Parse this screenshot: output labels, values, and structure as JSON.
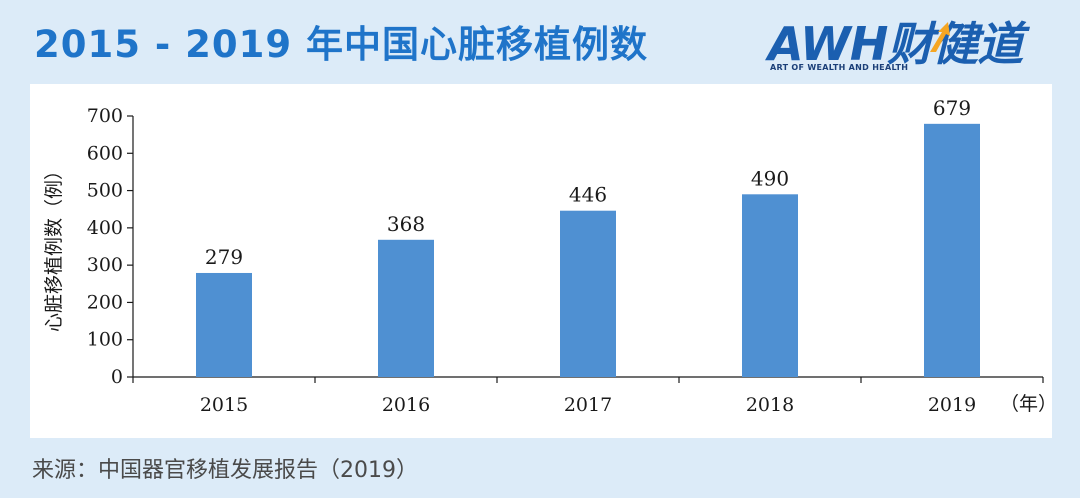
{
  "header": {
    "title": "2015 - 2019 年中国心脏移植例数"
  },
  "logo": {
    "main": "AWH财健道",
    "tagline": "ART OF WEALTH AND HEALTH",
    "arrow_color": "#f5a623"
  },
  "chart_data": {
    "type": "bar",
    "categories": [
      "2015",
      "2016",
      "2017",
      "2018",
      "2019"
    ],
    "values": [
      279,
      368,
      446,
      490,
      679
    ],
    "value_labels": [
      "279",
      "368",
      "446",
      "490",
      "679"
    ],
    "xlabel_unit": "（年）",
    "ylabel": "心脏移植例数（例）",
    "ylim": [
      0,
      700
    ],
    "yticks": [
      "0",
      "100",
      "200",
      "300",
      "400",
      "500",
      "600",
      "700"
    ],
    "bar_color": "#4f90d2",
    "grid": false
  },
  "footer": {
    "source": "来源：中国器官移植发展报告（2019）"
  }
}
